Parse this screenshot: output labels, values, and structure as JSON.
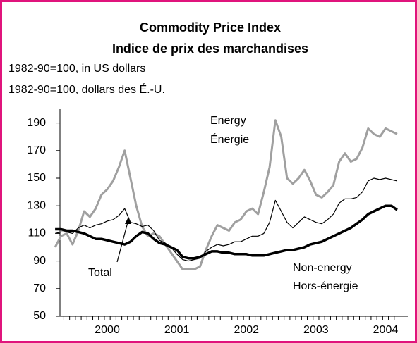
{
  "chart_data": {
    "type": "line",
    "title": "Commodity Price Index",
    "title_fr": "Indice de prix des marchandises",
    "subtitle": "1982-90=100, in US dollars",
    "subtitle_fr": "1982-90=100, dollars des É.-U.",
    "annotations": [
      "Énergie",
      "Hors-énergie"
    ],
    "categories": [
      null,
      null,
      null,
      null,
      null,
      null,
      null,
      null,
      null,
      "2000",
      null,
      null,
      null,
      null,
      null,
      null,
      null,
      null,
      null,
      null,
      null,
      "2001",
      null,
      null,
      null,
      null,
      null,
      null,
      null,
      null,
      null,
      null,
      null,
      "2002",
      null,
      null,
      null,
      null,
      null,
      null,
      null,
      null,
      null,
      null,
      null,
      "2003",
      null,
      null,
      null,
      null,
      null,
      null,
      null,
      null,
      null,
      null,
      null,
      "2004",
      null,
      null
    ],
    "series": [
      {
        "name": "Energy",
        "color": "#a0a0a0",
        "values": [
          100,
          108,
          110,
          102,
          112,
          126,
          122,
          128,
          138,
          142,
          148,
          158,
          170,
          150,
          130,
          115,
          108,
          110,
          108,
          102,
          96,
          90,
          84,
          84,
          84,
          86,
          98,
          108,
          116,
          114,
          112,
          118,
          120,
          126,
          128,
          124,
          140,
          158,
          192,
          180,
          150,
          146,
          150,
          156,
          148,
          138,
          136,
          140,
          145,
          162,
          168,
          162,
          164,
          172,
          186,
          182,
          180,
          186,
          184,
          182
        ]
      },
      {
        "name": "Total",
        "color": "#000000",
        "values": [
          110,
          111,
          111,
          110,
          114,
          116,
          114,
          116,
          117,
          119,
          120,
          123,
          128,
          118,
          117,
          115,
          116,
          112,
          105,
          103,
          100,
          95,
          91,
          90,
          91,
          92,
          97,
          100,
          102,
          101,
          102,
          104,
          104,
          106,
          108,
          108,
          110,
          118,
          134,
          126,
          118,
          114,
          118,
          122,
          120,
          118,
          117,
          120,
          124,
          132,
          135,
          135,
          136,
          140,
          148,
          150,
          149,
          150,
          149,
          148
        ]
      },
      {
        "name": "Non-energy",
        "color": "#000000",
        "values": [
          113,
          113,
          112,
          112,
          111,
          110,
          108,
          106,
          106,
          105,
          104,
          103,
          102,
          104,
          108,
          111,
          110,
          106,
          103,
          102,
          100,
          98,
          93,
          92,
          92,
          93,
          95,
          97,
          97,
          96,
          96,
          95,
          95,
          95,
          94,
          94,
          94,
          95,
          96,
          97,
          98,
          98,
          99,
          100,
          102,
          103,
          104,
          106,
          108,
          110,
          112,
          114,
          117,
          120,
          124,
          126,
          128,
          130,
          130,
          127
        ]
      }
    ],
    "ylim": [
      50,
      200
    ],
    "yticks": [
      50,
      70,
      90,
      110,
      130,
      150,
      170,
      190
    ]
  }
}
